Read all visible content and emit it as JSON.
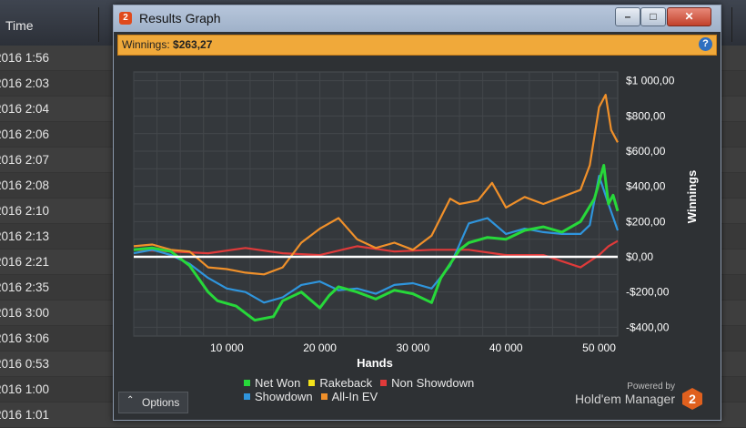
{
  "background": {
    "column_header": "Time",
    "rows": [
      "2016 1:56",
      "2016 2:03",
      "2016 2:04",
      "2016 2:06",
      "2016 2:07",
      "2016 2:08",
      "2016 2:10",
      "2016 2:13",
      "2016 2:21",
      "2016 2:35",
      "2016 3:00",
      "2016 3:06",
      "2016 0:53",
      "2016 1:00",
      "2016 1:01"
    ]
  },
  "window": {
    "title": "Results Graph",
    "icon_glyph": "2",
    "minimize_glyph": "–",
    "maximize_glyph": "□",
    "close_glyph": "✕"
  },
  "infobar": {
    "label": "Winnings:",
    "value": "$263,27",
    "help_glyph": "?"
  },
  "options": {
    "label": "Options",
    "chevron": "⌃"
  },
  "brand": {
    "powered_by": "Powered by",
    "name": "Hold'em Manager",
    "logo_glyph": "2"
  },
  "colors": {
    "net_won": "#27d83a",
    "rakeback": "#f2e21b",
    "non_showdown": "#e03a3a",
    "showdown": "#2f95dd",
    "all_in_ev": "#f0902a"
  },
  "chart_data": {
    "type": "line",
    "xlabel": "Hands",
    "ylabel": "Winnings",
    "xlim": [
      0,
      52000
    ],
    "ylim": [
      -450,
      1050
    ],
    "x_ticks": [
      10000,
      20000,
      30000,
      40000,
      50000
    ],
    "x_tick_labels": [
      "10 000",
      "20 000",
      "30 000",
      "40 000",
      "50 000"
    ],
    "y_ticks": [
      1000,
      800,
      600,
      400,
      200,
      0,
      -200,
      -400
    ],
    "y_tick_labels": [
      "$1 000,00",
      "$800,00",
      "$600,00",
      "$400,00",
      "$200,00",
      "$0,00",
      "-$200,00",
      "-$400,00"
    ],
    "grid": true,
    "legend_position": "bottom",
    "series": [
      {
        "name": "Net Won",
        "key": "net_won",
        "x": [
          0,
          2000,
          4000,
          6000,
          8000,
          9000,
          11000,
          13000,
          15000,
          16000,
          18000,
          20000,
          21000,
          22000,
          24000,
          26000,
          28000,
          30000,
          32000,
          33000,
          35000,
          36000,
          38000,
          40000,
          42000,
          44000,
          46000,
          48000,
          49500,
          50500,
          51000,
          51500,
          52000
        ],
        "y": [
          40,
          50,
          30,
          -50,
          -200,
          -250,
          -280,
          -360,
          -340,
          -250,
          -200,
          -290,
          -220,
          -170,
          -200,
          -240,
          -190,
          -210,
          -260,
          -120,
          40,
          80,
          110,
          100,
          150,
          170,
          140,
          200,
          330,
          520,
          300,
          350,
          260
        ]
      },
      {
        "name": "Rakeback",
        "key": "rakeback",
        "x": [
          0,
          52000
        ],
        "y": [
          0,
          0
        ]
      },
      {
        "name": "Non Showdown",
        "key": "non_showdown",
        "x": [
          0,
          4000,
          8000,
          12000,
          16000,
          20000,
          24000,
          28000,
          32000,
          36000,
          40000,
          44000,
          48000,
          50000,
          51000,
          52000
        ],
        "y": [
          40,
          30,
          20,
          50,
          20,
          10,
          60,
          30,
          40,
          40,
          10,
          10,
          -60,
          10,
          60,
          90
        ]
      },
      {
        "name": "Showdown",
        "key": "showdown",
        "x": [
          0,
          2000,
          4000,
          6000,
          8000,
          10000,
          12000,
          14000,
          16000,
          18000,
          20000,
          22000,
          24000,
          26000,
          28000,
          30000,
          32000,
          34000,
          36000,
          38000,
          40000,
          42000,
          44000,
          46000,
          48000,
          49000,
          50000,
          51000,
          52000
        ],
        "y": [
          20,
          40,
          10,
          -40,
          -120,
          -180,
          -200,
          -260,
          -230,
          -160,
          -140,
          -190,
          -180,
          -210,
          -160,
          -150,
          -180,
          -50,
          190,
          220,
          130,
          160,
          140,
          130,
          130,
          180,
          460,
          300,
          150
        ]
      },
      {
        "name": "All-In EV",
        "key": "all_in_ev",
        "x": [
          0,
          2000,
          4000,
          6000,
          8000,
          10000,
          12000,
          14000,
          16000,
          18000,
          20000,
          22000,
          24000,
          26000,
          28000,
          30000,
          32000,
          34000,
          35000,
          37000,
          38500,
          40000,
          42000,
          44000,
          46000,
          48000,
          49000,
          50000,
          50700,
          51300,
          52000
        ],
        "y": [
          60,
          70,
          40,
          30,
          -60,
          -70,
          -90,
          -100,
          -60,
          80,
          160,
          220,
          100,
          50,
          80,
          40,
          120,
          330,
          300,
          320,
          420,
          280,
          340,
          300,
          340,
          380,
          520,
          850,
          920,
          720,
          650
        ]
      }
    ]
  }
}
